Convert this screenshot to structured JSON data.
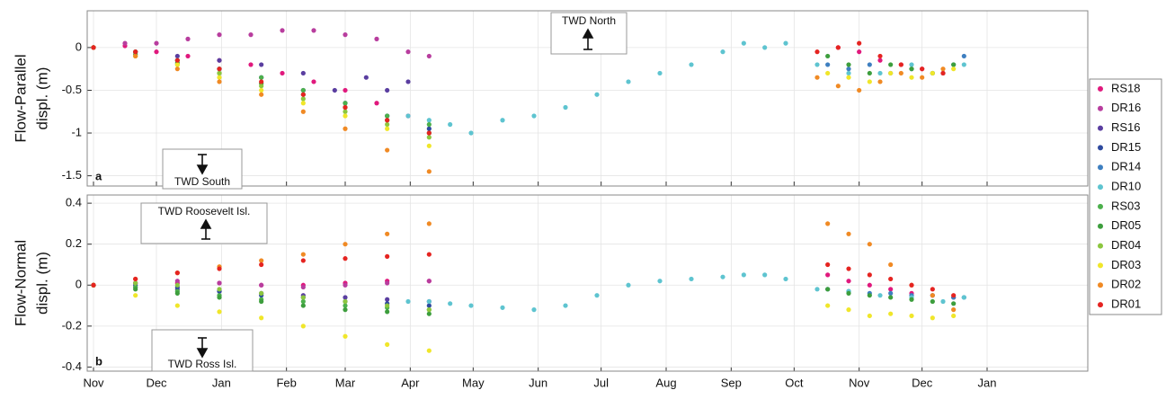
{
  "chart_data": [
    {
      "type": "scatter",
      "panel_label": "a",
      "ylabel": [
        "Flow-Parallel",
        "displ. (m)"
      ],
      "annotations": [
        "TWD North",
        "TWD South"
      ],
      "xlim": [
        -3,
        474
      ],
      "ylim": [
        -1.62,
        0.43
      ],
      "yticks": [
        -1.5,
        -1,
        -0.5,
        0
      ],
      "grid": true,
      "legend": "right",
      "series": [
        {
          "name": "RS18",
          "color": "#e0197d",
          "x": [
            0,
            15,
            30,
            45,
            60,
            75,
            90,
            105,
            120,
            135,
            150,
            355,
            365,
            375,
            385,
            395,
            405
          ],
          "values": [
            0,
            0.02,
            -0.05,
            -0.1,
            -0.15,
            -0.2,
            -0.3,
            -0.4,
            -0.5,
            -0.65,
            -0.8,
            0,
            -0.05,
            -0.15,
            -0.2,
            -0.25,
            -0.3
          ]
        },
        {
          "name": "DR16",
          "color": "#b83d9e",
          "x": [
            0,
            15,
            30,
            45,
            60,
            75,
            90,
            105,
            120,
            135,
            150,
            160
          ],
          "values": [
            0,
            0.05,
            0.05,
            0.1,
            0.15,
            0.15,
            0.2,
            0.2,
            0.15,
            0.1,
            -0.05,
            -0.1
          ]
        },
        {
          "name": "RS16",
          "color": "#5a3ea0",
          "x": [
            0,
            20,
            40,
            60,
            80,
            100,
            115,
            130,
            140,
            150
          ],
          "values": [
            0,
            -0.05,
            -0.1,
            -0.15,
            -0.2,
            -0.3,
            -0.5,
            -0.35,
            -0.5,
            -0.4
          ]
        },
        {
          "name": "DR15",
          "color": "#2e4a9e",
          "x": [
            0,
            20,
            40,
            60,
            80,
            100,
            120,
            140,
            160
          ],
          "values": [
            0,
            -0.05,
            -0.15,
            -0.25,
            -0.35,
            -0.5,
            -0.65,
            -0.8,
            -0.95
          ]
        },
        {
          "name": "DR14",
          "color": "#3e7fc0",
          "x": [
            350,
            360,
            370,
            380,
            390,
            400,
            410,
            415
          ],
          "values": [
            -0.2,
            -0.25,
            -0.2,
            -0.3,
            -0.25,
            -0.3,
            -0.2,
            -0.1
          ]
        },
        {
          "name": "DR10",
          "color": "#5ec4d0",
          "x": [
            150,
            160,
            170,
            180,
            195,
            210,
            225,
            240,
            255,
            270,
            285,
            300,
            310,
            320,
            330,
            345,
            360,
            375,
            390,
            405,
            415
          ],
          "values": [
            -0.8,
            -0.85,
            -0.9,
            -1.0,
            -0.85,
            -0.8,
            -0.7,
            -0.55,
            -0.4,
            -0.3,
            -0.2,
            -0.05,
            0.05,
            0,
            0.05,
            -0.2,
            -0.3,
            -0.3,
            -0.2,
            -0.3,
            -0.2
          ]
        },
        {
          "name": "RS03",
          "color": "#4cb04c",
          "x": [
            0,
            20,
            40,
            60,
            80,
            100,
            120,
            140,
            160
          ],
          "values": [
            0,
            -0.05,
            -0.15,
            -0.25,
            -0.35,
            -0.5,
            -0.65,
            -0.8,
            -0.9
          ]
        },
        {
          "name": "DR05",
          "color": "#3d9e3d",
          "x": [
            0,
            20,
            40,
            60,
            80,
            100,
            120,
            140,
            160,
            350,
            360,
            370,
            380,
            390,
            400,
            410
          ],
          "values": [
            0,
            -0.08,
            -0.18,
            -0.3,
            -0.42,
            -0.55,
            -0.7,
            -0.85,
            -1.0,
            -0.1,
            -0.2,
            -0.3,
            -0.2,
            -0.25,
            -0.3,
            -0.2
          ]
        },
        {
          "name": "DR04",
          "color": "#8cc63f",
          "x": [
            0,
            20,
            40,
            60,
            80,
            100,
            120,
            140,
            160
          ],
          "values": [
            0,
            -0.1,
            -0.2,
            -0.3,
            -0.45,
            -0.6,
            -0.75,
            -0.9,
            -1.05
          ]
        },
        {
          "name": "DR03",
          "color": "#f0e62a",
          "x": [
            0,
            20,
            40,
            60,
            80,
            100,
            120,
            140,
            160,
            350,
            360,
            370,
            380,
            390,
            400,
            410
          ],
          "values": [
            0,
            -0.1,
            -0.2,
            -0.35,
            -0.5,
            -0.65,
            -0.8,
            -0.95,
            -1.15,
            -0.3,
            -0.35,
            -0.4,
            -0.3,
            -0.35,
            -0.3,
            -0.25
          ]
        },
        {
          "name": "DR02",
          "color": "#f08a24",
          "x": [
            0,
            20,
            40,
            60,
            80,
            100,
            120,
            140,
            160,
            345,
            355,
            365,
            375,
            385,
            395,
            405
          ],
          "values": [
            0,
            -0.1,
            -0.25,
            -0.4,
            -0.55,
            -0.75,
            -0.95,
            -1.2,
            -1.45,
            -0.35,
            -0.45,
            -0.5,
            -0.4,
            -0.3,
            -0.35,
            -0.25
          ]
        },
        {
          "name": "DR01",
          "color": "#e52421",
          "x": [
            0,
            20,
            40,
            60,
            80,
            100,
            120,
            140,
            160,
            345,
            355,
            365,
            375,
            385,
            395,
            405
          ],
          "values": [
            0,
            -0.05,
            -0.15,
            -0.25,
            -0.4,
            -0.55,
            -0.7,
            -0.85,
            -1.0,
            -0.05,
            0,
            0.05,
            -0.1,
            -0.2,
            -0.25,
            -0.3
          ]
        }
      ]
    },
    {
      "type": "scatter",
      "panel_label": "b",
      "ylabel": [
        "Flow-Normal",
        "displ. (m)"
      ],
      "annotations": [
        "TWD Roosevelt Isl.",
        "TWD Ross Isl."
      ],
      "xlim": [
        -3,
        474
      ],
      "ylim": [
        -0.42,
        0.44
      ],
      "yticks": [
        -0.4,
        -0.2,
        0,
        0.2,
        0.4
      ],
      "grid": true,
      "xticks": [
        {
          "value": 0,
          "label": "Nov"
        },
        {
          "value": 30,
          "label": "Dec"
        },
        {
          "value": 61,
          "label": "Jan"
        },
        {
          "value": 92,
          "label": "Feb"
        },
        {
          "value": 120,
          "label": "Mar"
        },
        {
          "value": 151,
          "label": "Apr"
        },
        {
          "value": 181,
          "label": "May"
        },
        {
          "value": 212,
          "label": "Jun"
        },
        {
          "value": 242,
          "label": "Jul"
        },
        {
          "value": 273,
          "label": "Aug"
        },
        {
          "value": 304,
          "label": "Sep"
        },
        {
          "value": 334,
          "label": "Oct"
        },
        {
          "value": 365,
          "label": "Nov"
        },
        {
          "value": 395,
          "label": "Dec"
        },
        {
          "value": 426,
          "label": "Jan"
        }
      ],
      "series": [
        {
          "color": "#e0197d",
          "x": [
            0,
            20,
            40,
            60,
            80,
            100,
            120,
            140,
            160,
            350,
            360,
            370,
            380,
            390,
            400,
            410
          ],
          "values": [
            0,
            0.01,
            0.01,
            0.01,
            0,
            0,
            0.01,
            0.02,
            0.02,
            0.05,
            0.02,
            0,
            -0.02,
            -0.04,
            -0.05,
            -0.06
          ]
        },
        {
          "color": "#b83d9e",
          "x": [
            0,
            20,
            40,
            60,
            80,
            100,
            120,
            140,
            160
          ],
          "values": [
            0,
            0.01,
            0.02,
            0.01,
            0,
            -0.01,
            0,
            0.01,
            0.02
          ]
        },
        {
          "color": "#5a3ea0",
          "x": [
            0,
            20,
            40,
            60,
            80,
            100,
            120,
            140,
            160
          ],
          "values": [
            0,
            -0.01,
            -0.02,
            -0.03,
            -0.04,
            -0.05,
            -0.06,
            -0.07,
            -0.08
          ]
        },
        {
          "color": "#2e4a9e",
          "x": [
            0,
            20,
            40,
            60,
            80,
            100,
            120,
            140,
            160
          ],
          "values": [
            0,
            0,
            -0.01,
            -0.03,
            -0.05,
            -0.06,
            -0.08,
            -0.09,
            -0.1
          ]
        },
        {
          "color": "#3e7fc0",
          "x": [
            350,
            360,
            370,
            380,
            390,
            400,
            410,
            415
          ],
          "values": [
            -0.02,
            -0.03,
            -0.04,
            -0.04,
            -0.05,
            -0.05,
            -0.06,
            -0.06
          ]
        },
        {
          "color": "#5ec4d0",
          "x": [
            150,
            160,
            170,
            180,
            195,
            210,
            225,
            240,
            255,
            270,
            285,
            300,
            310,
            320,
            330,
            345,
            360,
            375,
            390,
            405,
            415
          ],
          "values": [
            -0.08,
            -0.08,
            -0.09,
            -0.1,
            -0.11,
            -0.12,
            -0.1,
            -0.05,
            0,
            0.02,
            0.03,
            0.04,
            0.05,
            0.05,
            0.03,
            -0.02,
            -0.03,
            -0.05,
            -0.06,
            -0.08,
            -0.06
          ]
        },
        {
          "color": "#4cb04c",
          "x": [
            0,
            20,
            40,
            60,
            80,
            100,
            120,
            140,
            160
          ],
          "values": [
            0,
            -0.01,
            -0.03,
            -0.05,
            -0.07,
            -0.08,
            -0.1,
            -0.11,
            -0.12
          ]
        },
        {
          "color": "#3d9e3d",
          "x": [
            0,
            20,
            40,
            60,
            80,
            100,
            120,
            140,
            160,
            350,
            360,
            370,
            380,
            390,
            400,
            410
          ],
          "values": [
            0,
            -0.02,
            -0.04,
            -0.06,
            -0.08,
            -0.1,
            -0.12,
            -0.13,
            -0.14,
            -0.02,
            -0.04,
            -0.05,
            -0.06,
            -0.07,
            -0.08,
            -0.09
          ]
        },
        {
          "color": "#8cc63f",
          "x": [
            0,
            20,
            40,
            60,
            80,
            100,
            120,
            140,
            160
          ],
          "values": [
            0,
            0.01,
            0,
            -0.02,
            -0.04,
            -0.06,
            -0.08,
            -0.1,
            -0.12
          ]
        },
        {
          "color": "#f0e62a",
          "x": [
            0,
            20,
            40,
            60,
            80,
            100,
            120,
            140,
            160,
            350,
            360,
            370,
            380,
            390,
            400,
            410
          ],
          "values": [
            0,
            -0.05,
            -0.1,
            -0.13,
            -0.16,
            -0.2,
            -0.25,
            -0.29,
            -0.32,
            -0.1,
            -0.12,
            -0.15,
            -0.14,
            -0.15,
            -0.16,
            -0.15
          ]
        },
        {
          "color": "#f08a24",
          "x": [
            0,
            20,
            40,
            60,
            80,
            100,
            120,
            140,
            160,
            350,
            360,
            370,
            380,
            390,
            400,
            410
          ],
          "values": [
            0,
            0.03,
            0.06,
            0.09,
            0.12,
            0.15,
            0.2,
            0.25,
            0.3,
            0.3,
            0.25,
            0.2,
            0.1,
            0,
            -0.05,
            -0.12
          ]
        },
        {
          "color": "#e52421",
          "x": [
            0,
            20,
            40,
            60,
            80,
            100,
            120,
            140,
            160,
            350,
            360,
            370,
            380,
            390,
            400,
            410
          ],
          "values": [
            0,
            0.03,
            0.06,
            0.08,
            0.1,
            0.12,
            0.13,
            0.14,
            0.15,
            0.1,
            0.08,
            0.05,
            0.03,
            0,
            -0.02,
            -0.05
          ]
        }
      ]
    }
  ]
}
